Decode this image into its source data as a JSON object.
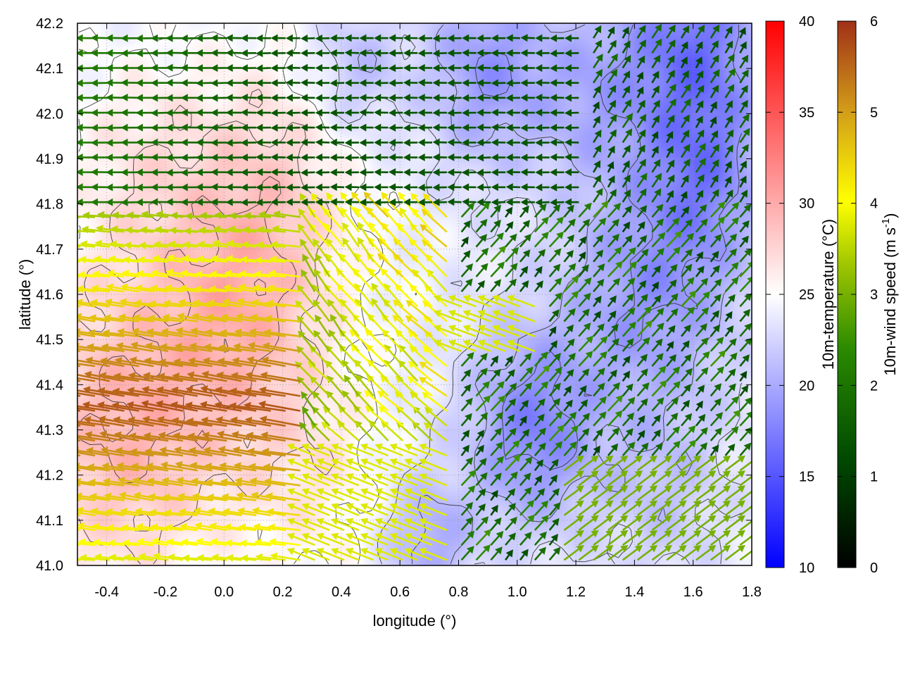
{
  "chart_data": {
    "type": "heatmap",
    "subtype": "scalar field with wind vectors and contours",
    "xlabel": "longitude (°)",
    "ylabel": "latitude (°)",
    "xlim": [
      -0.5,
      1.8
    ],
    "ylim": [
      41.0,
      42.2
    ],
    "x_ticks": [
      "-0.4",
      "-0.2",
      "0.0",
      "0.2",
      "0.4",
      "0.6",
      "0.8",
      "1.0",
      "1.2",
      "1.4",
      "1.6",
      "1.8"
    ],
    "x_tick_values": [
      -0.4,
      -0.2,
      0.0,
      0.2,
      0.4,
      0.6,
      0.8,
      1.0,
      1.2,
      1.4,
      1.6,
      1.8
    ],
    "y_ticks": [
      "41.0",
      "41.1",
      "41.2",
      "41.3",
      "41.4",
      "41.5",
      "41.6",
      "41.7",
      "41.8",
      "41.9",
      "42.0",
      "42.1",
      "42.2"
    ],
    "y_tick_values": [
      41.0,
      41.1,
      41.2,
      41.3,
      41.4,
      41.5,
      41.6,
      41.7,
      41.8,
      41.9,
      42.0,
      42.1,
      42.2
    ],
    "grid": true,
    "temperature_colorbar": {
      "label": "10m-temperature (°C)",
      "range": [
        10,
        40
      ],
      "ticks": [
        "10",
        "15",
        "20",
        "25",
        "30",
        "35",
        "40"
      ],
      "tick_values": [
        10,
        15,
        20,
        25,
        30,
        35,
        40
      ],
      "colors": [
        "#0000ff",
        "#ffffff",
        "#ff0000"
      ]
    },
    "wind_colorbar": {
      "label": "10m-wind speed (m s",
      "label_sup": "-1",
      "label_end": ")",
      "range": [
        0,
        6
      ],
      "ticks": [
        "0",
        "1",
        "2",
        "3",
        "4",
        "5",
        "6"
      ],
      "tick_values": [
        0,
        1,
        2,
        3,
        4,
        5,
        6
      ],
      "colors": [
        "#000000",
        "#005000",
        "#2e8b00",
        "#8fbf00",
        "#ffff00",
        "#d4a010",
        "#a03018"
      ]
    },
    "temperature_field": {
      "background_c": 24,
      "blobs": [
        {
          "lon": -0.35,
          "lat": 41.3,
          "r": 0.35,
          "dt": 5
        },
        {
          "lon": 0.05,
          "lat": 41.55,
          "r": 0.3,
          "dt": 4
        },
        {
          "lon": 0.15,
          "lat": 41.85,
          "r": 0.3,
          "dt": 3
        },
        {
          "lon": -0.3,
          "lat": 41.9,
          "r": 0.25,
          "dt": 2
        },
        {
          "lon": 0.3,
          "lat": 41.2,
          "r": 0.25,
          "dt": 2
        },
        {
          "lon": 1.05,
          "lat": 41.3,
          "r": 0.22,
          "dt": -6
        },
        {
          "lon": 1.45,
          "lat": 41.6,
          "r": 0.3,
          "dt": -5
        },
        {
          "lon": 1.6,
          "lat": 42.15,
          "r": 0.25,
          "dt": -7
        },
        {
          "lon": 0.9,
          "lat": 42.1,
          "r": 0.22,
          "dt": -5
        },
        {
          "lon": 0.45,
          "lat": 42.1,
          "r": 0.15,
          "dt": -3
        },
        {
          "lon": 1.25,
          "lat": 42.05,
          "r": 0.2,
          "dt": -3
        },
        {
          "lon": 1.65,
          "lat": 41.85,
          "r": 0.2,
          "dt": -4
        },
        {
          "lon": 0.7,
          "lat": 41.05,
          "r": 0.15,
          "dt": -4
        },
        {
          "lon": 1.5,
          "lat": 41.15,
          "r": 0.2,
          "dt": -2
        }
      ]
    },
    "wind_regimes": [
      {
        "region": "northern band, lat 41.8 to 42.2",
        "direction": "westward",
        "speed_ms": [
          0.5,
          2.5
        ]
      },
      {
        "region": "south-west, lon -0.5 to 0.7, lat 41.0 to 41.7",
        "direction": "west to west-north-west",
        "speed_ms": [
          3.0,
          6.0
        ]
      },
      {
        "region": "central, lon 0.3 to 0.8, lat 41.4 to 41.8",
        "direction": "north-west to north",
        "speed_ms": [
          3.5,
          5.5
        ]
      },
      {
        "region": "east, lon 0.8 to 1.8, lat 41.3 to 41.8",
        "direction": "north-east",
        "speed_ms": [
          1.5,
          3.0
        ]
      },
      {
        "region": "south-east, lon 1.2 to 1.8, lat 41.0 to 41.25",
        "direction": "north-east",
        "speed_ms": [
          3.0,
          4.0
        ]
      }
    ]
  }
}
